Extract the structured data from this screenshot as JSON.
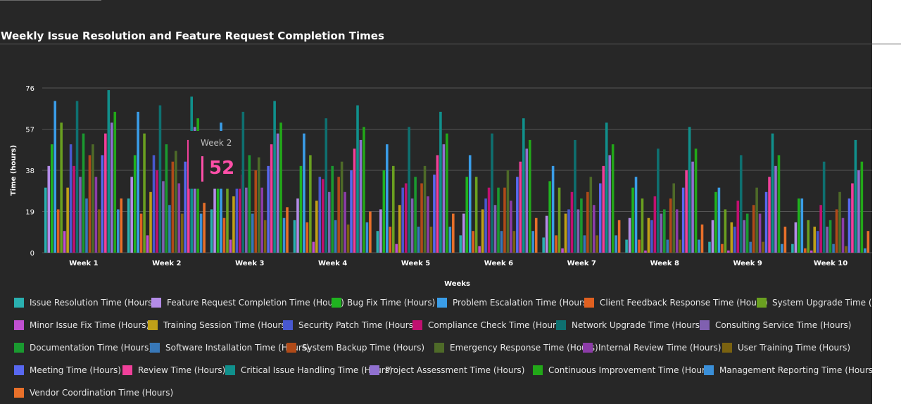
{
  "chart_data": {
    "type": "bar",
    "title": "Weekly Issue Resolution and Feature Request Completion Times",
    "xlabel": "Weeks",
    "ylabel": "Time (hours)",
    "ylim": [
      0,
      76
    ],
    "yticks": [
      0,
      19,
      38,
      57,
      76
    ],
    "grid": true,
    "legend_position": "bottom",
    "categories": [
      "Week 1",
      "Week 2",
      "Week 3",
      "Week 4",
      "Week 5",
      "Week 6",
      "Week 7",
      "Week 8",
      "Week 9",
      "Week 10"
    ],
    "series": [
      {
        "name": "Issue Resolution Time (Hours)",
        "color": "#2ab0b0",
        "values": [
          30,
          25,
          20,
          15,
          10,
          8,
          7,
          6,
          5,
          4
        ]
      },
      {
        "name": "Feature Request Completion Time (Hours)",
        "color": "#b48ce8",
        "values": [
          40,
          35,
          30,
          25,
          20,
          18,
          17,
          16,
          15,
          14
        ]
      },
      {
        "name": "Bug Fix Time (Hours)",
        "color": "#1fb31f",
        "values": [
          50,
          45,
          40,
          40,
          38,
          35,
          33,
          30,
          28,
          25
        ]
      },
      {
        "name": "Problem Escalation Time (Hours)",
        "color": "#3a9de8",
        "values": [
          70,
          65,
          60,
          55,
          50,
          45,
          40,
          35,
          30,
          25
        ]
      },
      {
        "name": "Client Feedback Response Time (Hours)",
        "color": "#e06020",
        "values": [
          20,
          18,
          16,
          14,
          12,
          10,
          8,
          6,
          4,
          2
        ]
      },
      {
        "name": "System Upgrade Time (Hours)",
        "color": "#6aa020",
        "values": [
          60,
          55,
          50,
          45,
          40,
          35,
          30,
          25,
          20,
          15
        ]
      },
      {
        "name": "Minor Issue Fix Time (Hours)",
        "color": "#c050d0",
        "values": [
          10,
          8,
          6,
          5,
          4,
          3,
          2,
          1,
          1,
          1
        ]
      },
      {
        "name": "Training Session Time (Hours)",
        "color": "#c0a018",
        "values": [
          30,
          28,
          26,
          24,
          22,
          20,
          18,
          16,
          14,
          12
        ]
      },
      {
        "name": "Security Patch Time (Hours)",
        "color": "#4858d0",
        "values": [
          50,
          45,
          40,
          35,
          30,
          25,
          20,
          15,
          12,
          10
        ]
      },
      {
        "name": "Compliance Check Time (Hours)",
        "color": "#c01070",
        "values": [
          40,
          38,
          36,
          34,
          32,
          30,
          28,
          26,
          24,
          22
        ]
      },
      {
        "name": "Network Upgrade Time (Hours)",
        "color": "#0e7070",
        "values": [
          70,
          68,
          65,
          62,
          58,
          55,
          52,
          48,
          45,
          42
        ]
      },
      {
        "name": "Consulting Service Time (Hours)",
        "color": "#8060b0",
        "values": [
          35,
          33,
          30,
          28,
          25,
          22,
          20,
          18,
          15,
          12
        ]
      },
      {
        "name": "Documentation Time (Hours)",
        "color": "#1a9a30",
        "values": [
          55,
          50,
          45,
          40,
          35,
          30,
          25,
          20,
          18,
          15
        ]
      },
      {
        "name": "Software Installation Time (Hours)",
        "color": "#3878b8",
        "values": [
          25,
          22,
          18,
          15,
          12,
          10,
          8,
          6,
          5,
          4
        ]
      },
      {
        "name": "System Backup Time (Hours)",
        "color": "#b04a18",
        "values": [
          45,
          42,
          38,
          35,
          32,
          30,
          28,
          25,
          22,
          20
        ]
      },
      {
        "name": "Emergency Response Time (Hours)",
        "color": "#4e6a28",
        "values": [
          50,
          47,
          44,
          42,
          40,
          38,
          35,
          32,
          30,
          28
        ]
      },
      {
        "name": "Internal Review Time (Hours)",
        "color": "#8c3ca8",
        "values": [
          35,
          32,
          30,
          28,
          26,
          24,
          22,
          20,
          18,
          16
        ]
      },
      {
        "name": "User Training Time (Hours)",
        "color": "#7a6210",
        "values": [
          20,
          18,
          15,
          13,
          12,
          10,
          8,
          6,
          5,
          3
        ]
      },
      {
        "name": "Meeting Time (Hours)",
        "color": "#5868f0",
        "values": [
          45,
          42,
          40,
          38,
          36,
          35,
          32,
          30,
          28,
          25
        ]
      },
      {
        "name": "Review Time (Hours)",
        "color": "#f0409a",
        "values": [
          55,
          52,
          50,
          48,
          45,
          42,
          40,
          38,
          35,
          32
        ]
      },
      {
        "name": "Critical Issue Handling Time (Hours)",
        "color": "#10908c",
        "values": [
          75,
          72,
          70,
          68,
          65,
          62,
          60,
          58,
          55,
          52
        ]
      },
      {
        "name": "Project Assessment Time (Hours)",
        "color": "#9070d0",
        "values": [
          60,
          58,
          55,
          52,
          50,
          48,
          45,
          42,
          40,
          38
        ]
      },
      {
        "name": "Continuous Improvement Time (Hours)",
        "color": "#22a818",
        "values": [
          65,
          62,
          60,
          58,
          55,
          52,
          50,
          48,
          45,
          42
        ]
      },
      {
        "name": "Management Reporting Time (Hours)",
        "color": "#3a8fd8",
        "values": [
          20,
          18,
          16,
          14,
          12,
          10,
          8,
          6,
          4,
          2
        ]
      },
      {
        "name": "Vendor Coordination Time (Hours)",
        "color": "#e8702a",
        "values": [
          25,
          23,
          21,
          19,
          18,
          16,
          15,
          13,
          12,
          10
        ]
      }
    ]
  },
  "tooltip": {
    "category": "Week 2",
    "value": "52",
    "color": "#ff4fa8"
  }
}
